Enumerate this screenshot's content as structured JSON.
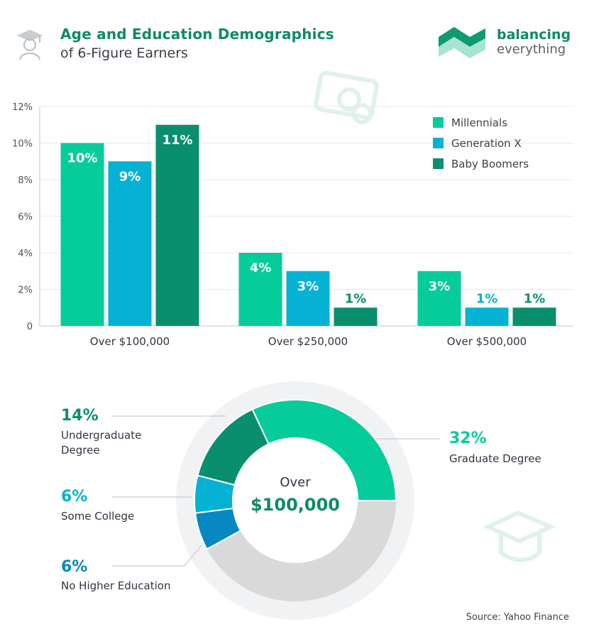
{
  "header": {
    "title": "Age and Education Demographics",
    "subtitle": "of 6-Figure Earners"
  },
  "brand": {
    "line1": "balancing",
    "line2": "everything"
  },
  "source": "Source: Yahoo Finance",
  "colors": {
    "millennials": "#06cc9c",
    "genx": "#05b2d3",
    "boomers": "#0a8f6e",
    "undergrad": "#0a8f6e",
    "some_college": "#05b2d3",
    "no_higher": "#0788c0",
    "graduate": "#06cc9c",
    "remainder": "#d9d9d9",
    "title": "#0f8a67"
  },
  "icons": {
    "header": "graduate-icon",
    "brand": "balancing-everything-logo",
    "watermark_top": "money-watermark-icon",
    "watermark_bottom": "graduation-cap-watermark-icon"
  },
  "chart_data": [
    {
      "type": "bar",
      "categories": [
        "Over $100,000",
        "Over $250,000",
        "Over $500,000"
      ],
      "series": [
        {
          "name": "Millennials",
          "values": [
            10,
            4,
            3
          ],
          "labels": [
            "10%",
            "4%",
            "3%"
          ]
        },
        {
          "name": "Generation X",
          "values": [
            9,
            3,
            1
          ],
          "labels": [
            "9%",
            "3%",
            "1%"
          ]
        },
        {
          "name": "Baby Boomers",
          "values": [
            11,
            1,
            1
          ],
          "labels": [
            "11%",
            "1%",
            "1%"
          ]
        }
      ],
      "ylim": [
        0,
        12
      ],
      "yticks": [
        "0",
        "2%",
        "4%",
        "6%",
        "8%",
        "10%",
        "12%"
      ],
      "grid": true,
      "legend": "top-right"
    },
    {
      "type": "pie",
      "center_label": "Over",
      "center_value": "$100,000",
      "slices": [
        {
          "name": "Graduate Degree",
          "value": 32,
          "label": "32%"
        },
        {
          "name": "Undergraduate Degree",
          "value": 14,
          "label": "14%"
        },
        {
          "name": "Some College",
          "value": 6,
          "label": "6%"
        },
        {
          "name": "No Higher Education",
          "value": 6,
          "label": "6%"
        }
      ]
    }
  ]
}
